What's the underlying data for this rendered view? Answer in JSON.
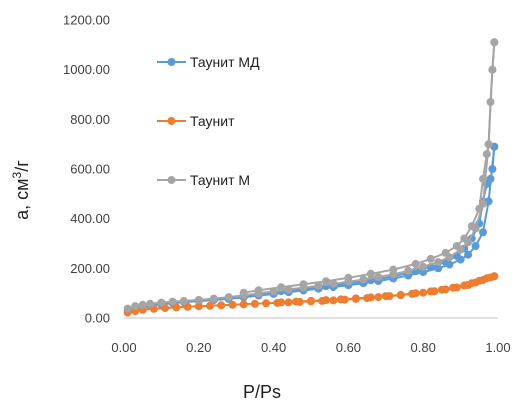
{
  "chart_data": {
    "type": "scatter",
    "xlabel": "P/Ps",
    "ylabel": "а, см³/г",
    "ylabel_main": "а, см",
    "ylabel_sup": "3",
    "ylabel_tail": "/г",
    "xlim": [
      0,
      1
    ],
    "ylim": [
      0,
      1200
    ],
    "x_ticks": [
      "0.00",
      "0.20",
      "0.40",
      "0.60",
      "0.80",
      "1.00"
    ],
    "y_ticks": [
      "0.00",
      "200.00",
      "400.00",
      "600.00",
      "800.00",
      "1000.00",
      "1200.00"
    ],
    "grid": false,
    "legend_position": "top-left",
    "series": [
      {
        "name": "Таунит МД",
        "color": "#5b9bd5",
        "adsorption": [
          [
            0.01,
            30
          ],
          [
            0.03,
            40
          ],
          [
            0.05,
            46
          ],
          [
            0.07,
            50
          ],
          [
            0.1,
            55
          ],
          [
            0.13,
            60
          ],
          [
            0.16,
            64
          ],
          [
            0.2,
            68
          ],
          [
            0.24,
            72
          ],
          [
            0.28,
            77
          ],
          [
            0.32,
            83
          ],
          [
            0.36,
            90
          ],
          [
            0.4,
            97
          ],
          [
            0.44,
            104
          ],
          [
            0.48,
            111
          ],
          [
            0.52,
            118
          ],
          [
            0.56,
            125
          ],
          [
            0.6,
            132
          ],
          [
            0.64,
            140
          ],
          [
            0.68,
            149
          ],
          [
            0.72,
            159
          ],
          [
            0.76,
            171
          ],
          [
            0.8,
            185
          ],
          [
            0.84,
            200
          ],
          [
            0.87,
            215
          ],
          [
            0.9,
            235
          ],
          [
            0.92,
            255
          ],
          [
            0.94,
            290
          ],
          [
            0.96,
            345
          ],
          [
            0.975,
            470
          ],
          [
            0.99,
            690
          ]
        ],
        "desorption": [
          [
            0.99,
            690
          ],
          [
            0.985,
            600
          ],
          [
            0.98,
            560
          ],
          [
            0.97,
            540
          ],
          [
            0.96,
            470
          ],
          [
            0.95,
            380
          ],
          [
            0.93,
            320
          ],
          [
            0.91,
            280
          ],
          [
            0.89,
            250
          ],
          [
            0.86,
            225
          ],
          [
            0.82,
            205
          ],
          [
            0.78,
            188
          ],
          [
            0.72,
            168
          ],
          [
            0.66,
            152
          ],
          [
            0.6,
            140
          ],
          [
            0.54,
            128
          ],
          [
            0.48,
            118
          ],
          [
            0.42,
            108
          ],
          [
            0.36,
            98
          ],
          [
            0.32,
            90
          ]
        ]
      },
      {
        "name": "Таунит",
        "color": "#ed7d31",
        "adsorption": [
          [
            0.01,
            22
          ],
          [
            0.03,
            28
          ],
          [
            0.05,
            33
          ],
          [
            0.08,
            37
          ],
          [
            0.11,
            40
          ],
          [
            0.14,
            43
          ],
          [
            0.17,
            45
          ],
          [
            0.2,
            47
          ],
          [
            0.23,
            49
          ],
          [
            0.26,
            51
          ],
          [
            0.29,
            53
          ],
          [
            0.32,
            55
          ],
          [
            0.35,
            57
          ],
          [
            0.38,
            59
          ],
          [
            0.41,
            61
          ],
          [
            0.44,
            63
          ],
          [
            0.47,
            65
          ],
          [
            0.5,
            67
          ],
          [
            0.53,
            69
          ],
          [
            0.56,
            71
          ],
          [
            0.59,
            74
          ],
          [
            0.62,
            77
          ],
          [
            0.65,
            80
          ],
          [
            0.68,
            84
          ],
          [
            0.71,
            88
          ],
          [
            0.74,
            92
          ],
          [
            0.77,
            97
          ],
          [
            0.8,
            102
          ],
          [
            0.83,
            108
          ],
          [
            0.86,
            115
          ],
          [
            0.89,
            123
          ],
          [
            0.92,
            133
          ],
          [
            0.94,
            143
          ],
          [
            0.96,
            153
          ],
          [
            0.98,
            163
          ],
          [
            0.99,
            168
          ]
        ],
        "desorption": [
          [
            0.99,
            168
          ],
          [
            0.97,
            160
          ],
          [
            0.95,
            150
          ],
          [
            0.93,
            140
          ],
          [
            0.91,
            131
          ],
          [
            0.88,
            122
          ],
          [
            0.85,
            114
          ],
          [
            0.82,
            107
          ],
          [
            0.78,
            100
          ],
          [
            0.74,
            93
          ],
          [
            0.7,
            88
          ],
          [
            0.66,
            83
          ],
          [
            0.62,
            79
          ],
          [
            0.58,
            75
          ],
          [
            0.54,
            72
          ],
          [
            0.5,
            69
          ],
          [
            0.46,
            66
          ],
          [
            0.42,
            63
          ]
        ]
      },
      {
        "name": "Таунит М",
        "color": "#a5a5a5",
        "adsorption": [
          [
            0.01,
            38
          ],
          [
            0.03,
            48
          ],
          [
            0.05,
            53
          ],
          [
            0.07,
            57
          ],
          [
            0.1,
            62
          ],
          [
            0.13,
            66
          ],
          [
            0.16,
            69
          ],
          [
            0.2,
            73
          ],
          [
            0.24,
            78
          ],
          [
            0.28,
            84
          ],
          [
            0.32,
            91
          ],
          [
            0.36,
            99
          ],
          [
            0.4,
            107
          ],
          [
            0.44,
            115
          ],
          [
            0.48,
            122
          ],
          [
            0.52,
            130
          ],
          [
            0.56,
            138
          ],
          [
            0.6,
            146
          ],
          [
            0.64,
            155
          ],
          [
            0.68,
            165
          ],
          [
            0.72,
            176
          ],
          [
            0.76,
            190
          ],
          [
            0.8,
            206
          ],
          [
            0.84,
            225
          ],
          [
            0.87,
            245
          ],
          [
            0.9,
            275
          ],
          [
            0.92,
            305
          ],
          [
            0.94,
            360
          ],
          [
            0.96,
            460
          ],
          [
            0.975,
            700
          ],
          [
            0.985,
            1000
          ],
          [
            0.99,
            1110
          ]
        ],
        "desorption": [
          [
            0.99,
            1110
          ],
          [
            0.985,
            1000
          ],
          [
            0.98,
            870
          ],
          [
            0.975,
            700
          ],
          [
            0.97,
            660
          ],
          [
            0.96,
            560
          ],
          [
            0.95,
            440
          ],
          [
            0.93,
            370
          ],
          [
            0.91,
            320
          ],
          [
            0.89,
            290
          ],
          [
            0.86,
            262
          ],
          [
            0.82,
            238
          ],
          [
            0.78,
            218
          ],
          [
            0.72,
            195
          ],
          [
            0.66,
            178
          ],
          [
            0.6,
            162
          ],
          [
            0.54,
            148
          ],
          [
            0.48,
            136
          ],
          [
            0.42,
            124
          ],
          [
            0.36,
            112
          ],
          [
            0.32,
            102
          ]
        ]
      }
    ]
  }
}
